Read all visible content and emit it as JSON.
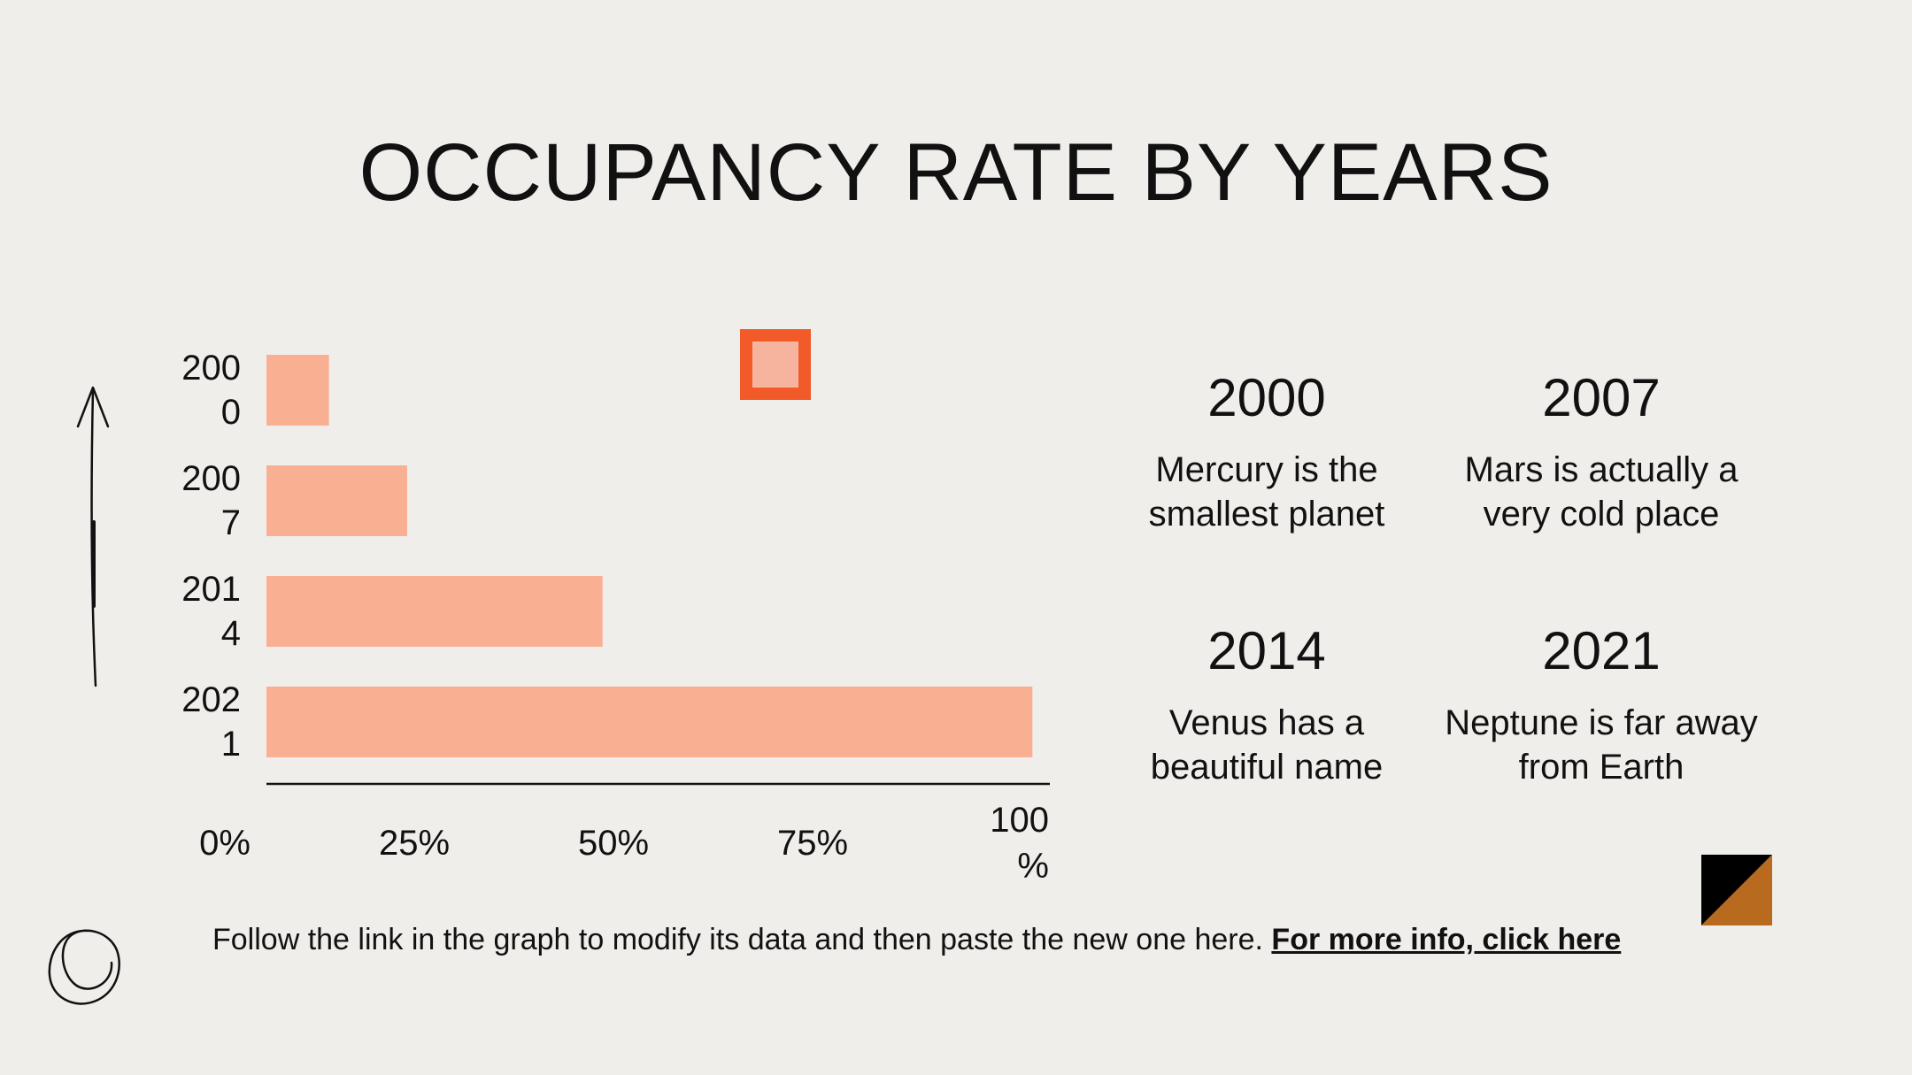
{
  "slide": {
    "title": "OCCUPANCY RATE BY YEARS"
  },
  "chart_data": {
    "type": "bar",
    "orientation": "horizontal",
    "categories": [
      "200\n0",
      "200\n7",
      "201\n4",
      "202\n1"
    ],
    "values": [
      8,
      18,
      43,
      98
    ],
    "xlim": [
      0,
      100
    ],
    "x_ticks": [
      "0%",
      "25%",
      "50%",
      "75%",
      "100\n%"
    ],
    "title": "",
    "xlabel": "",
    "ylabel": "",
    "grid": false,
    "legend": "none",
    "bar_color": "#f9b092",
    "axis_color": "#111111"
  },
  "facts": [
    {
      "year": "2000",
      "text": "Mercury is the smallest planet"
    },
    {
      "year": "2007",
      "text": "Mars is actually a very cold place"
    },
    {
      "year": "2014",
      "text": "Venus has a beautiful name"
    },
    {
      "year": "2021",
      "text": "Neptune is far away from Earth"
    }
  ],
  "footer": {
    "text": "Follow the link in the graph to modify its data and then paste the new one here.",
    "link_label": "For more info, click here"
  },
  "colors": {
    "background": "#f0eeeb",
    "accent_orange": "#f25a29",
    "accent_brown": "#b86a1e",
    "bar": "#f9b092"
  },
  "icons": [
    "arrow-up-icon",
    "scribble-circle-icon",
    "square-frame-icon",
    "split-square-icon"
  ]
}
